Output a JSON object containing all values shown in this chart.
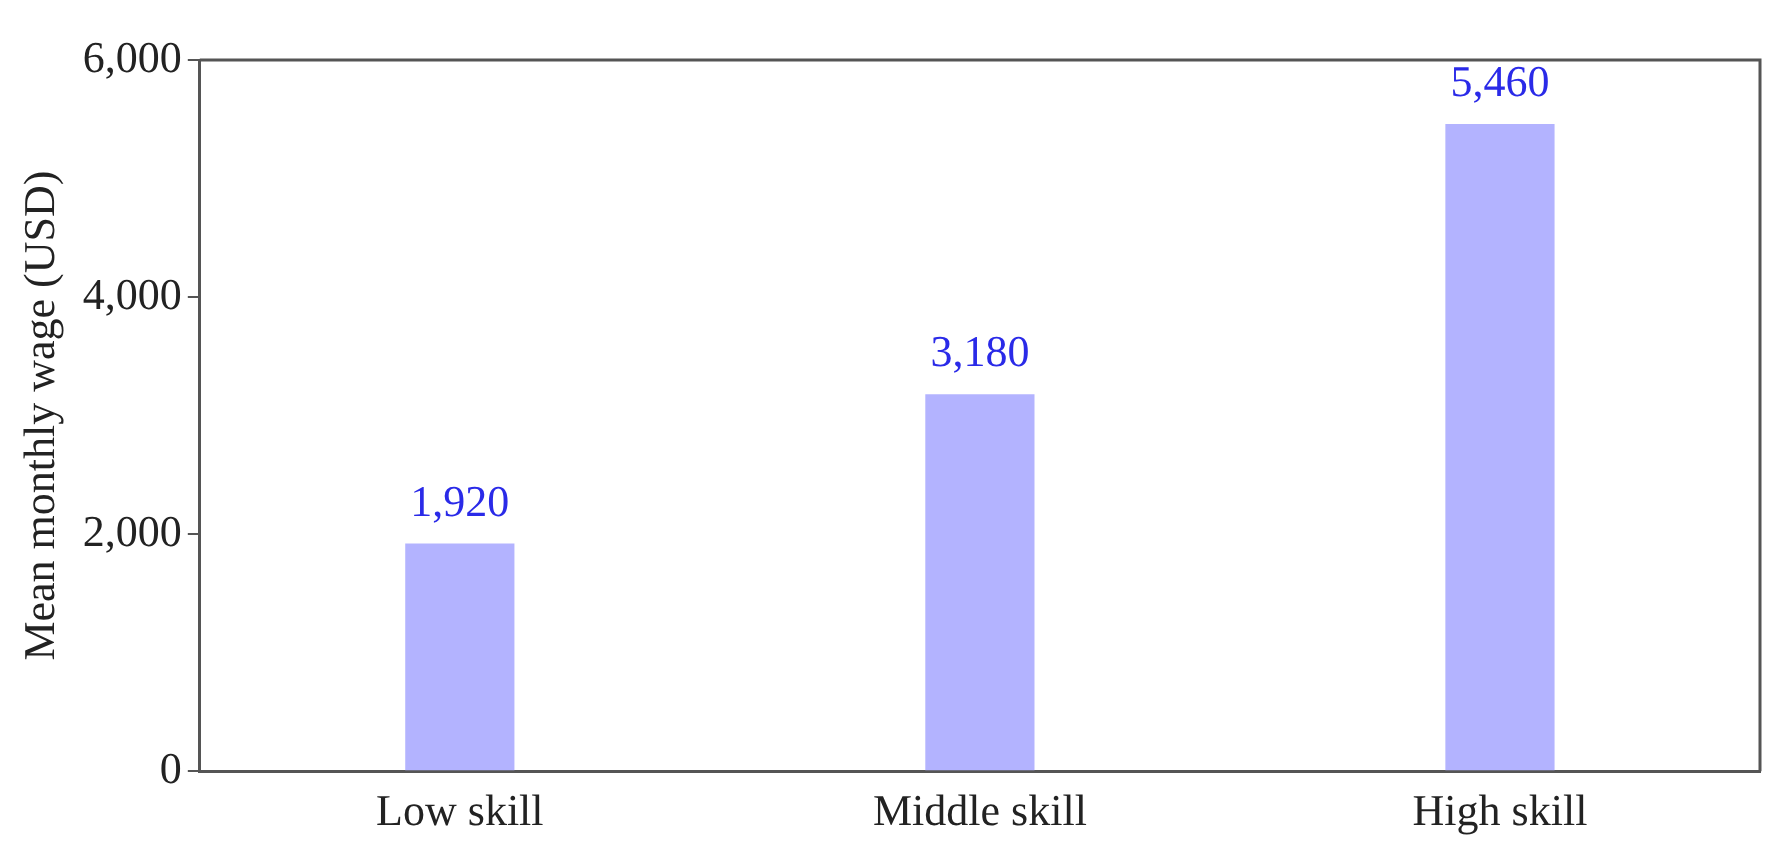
{
  "chart_data": {
    "type": "bar",
    "ylabel": "Mean monthly wage (USD)",
    "categories": [
      "Low skill",
      "Middle skill",
      "High skill"
    ],
    "values": [
      1920,
      3180,
      5460
    ],
    "color": "#b3b3ff",
    "value_labels": [
      "1,920",
      "3,180",
      "5,460"
    ],
    "ylim": [
      0,
      6000
    ],
    "yticks": [
      0,
      {
        "value": 2000,
        "label": "2,000"
      },
      {
        "value": 4000,
        "label": "4,000"
      },
      {
        "value": 6000,
        "label": "6,000"
      }
    ],
    "grid": false,
    "legend": false
  }
}
